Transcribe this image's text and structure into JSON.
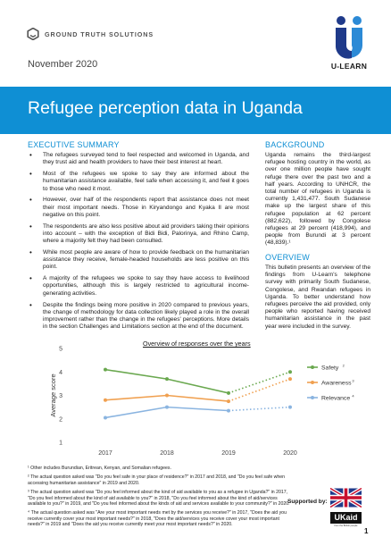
{
  "header": {
    "org_name": "GROUND TRUTH SOLUTIONS",
    "date": "November 2020",
    "partner_name": "U-LEARN",
    "title": "Refugee perception data in Uganda"
  },
  "executive_summary": {
    "heading": "EXECUTIVE SUMMARY",
    "bullets": [
      "The refugees surveyed tend to feel respected and welcomed in Uganda, and they trust aid and health providers to have their best interest at heart.",
      "Most of the refugees we spoke to say they are informed about the humanitarian assistance available, feel safe when accessing it, and feel it goes to those who need it most.",
      "However, over half of the respondents report that assistance does not meet their most important needs. Those in Kiryandongo and Kyaka II are most negative on this point.",
      "The respondents are also less positive about aid providers taking their opinions into account – with the exception of Bidi Bidi, Palorinya, and Rhino Camp, where a majority felt they had been consulted.",
      "While most people are aware of how to provide feedback on the humanitarian assistance they receive, female-headed households are less positive on this point.",
      "A majority of the refugees we spoke to say they have access to livelihood opportunities, although this is largely restricted to agricultural income-generating activities.",
      "Despite the findings being more positive in 2020 compared to previous years, the change of methodology for data collection likely played a role in the overall improvement rather than the change in the refugees' perceptions. More details in the section Challenges and Limitations section at the end of the document."
    ]
  },
  "background": {
    "heading": "BACKGROUND",
    "text": "Uganda remains the third-largest refugee hosting country in the world, as over one million people have sought refuge there over the past two and a half years. According to UNHCR, the total number of refugees in Uganda is currently 1,431,477. South Sudanese make up the largest share of this refugee population at 62 percent (882,622), followed by Congolese refugees at 29 percent (418,994), and people from Burundi at 3 percent (48,839).¹"
  },
  "overview": {
    "heading": "OVERVIEW",
    "text": "This bulletin presents an overview of the findings from U-Learn's telephone survey with primarily South Sudanese, Congolese, and Rwandan refugees in Uganda. To better understand how refugees perceive the aid provided, only people who reported having received humanitarian assistance in the past year were included in the survey."
  },
  "chart_data": {
    "type": "line",
    "title": "Overview of responses over the years",
    "xlabel": "",
    "ylabel": "Average score",
    "x": [
      "2017",
      "2018",
      "2019",
      "2020"
    ],
    "ylim": [
      1,
      5
    ],
    "yticks": [
      "1",
      "2",
      "3",
      "4",
      "5"
    ],
    "legend_position": "right",
    "series": [
      {
        "name": "Safety",
        "superscript": "2",
        "color": "#6aa84f",
        "values": [
          4.1,
          3.7,
          3.1,
          4.0
        ]
      },
      {
        "name": "Awareness",
        "superscript": "3",
        "color": "#f0a050",
        "values": [
          2.8,
          3.0,
          2.75,
          3.7
        ]
      },
      {
        "name": "Relevance",
        "superscript": "4",
        "color": "#8ab4e0",
        "values": [
          2.05,
          2.5,
          2.35,
          2.5
        ]
      }
    ]
  },
  "footnotes": [
    "¹ Other includes Burundian, Eritrean, Kenyan, and Somalian refugees.",
    "² The actual question asked was \"Do you feel safe in your place of residence?\" in 2017 and 2018, and \"Do you feel safe when accessing humanitarian assistance\" in 2019 and 2020.",
    "³ The actual question asked was \"Do you feel informed about the kind of aid available to you as a refugee in Uganda?\" in 2017, \"Do you feel informed about the kind of aid available to you?\" in 2018, \"Do you feel informed about the kind of aid/services available to you?\" in 2019, and \"Do you feel informed about the kinds of aid and services available to your community?\" in 2020.",
    "⁴ The actual question asked was \"Are your most important needs met by the services you receive?\" in 2017, \"Does the aid you receive currently cover your most important needs?\" in 2018, \"Does the aid/services you receive cover your most important needs?\" in 2019 and \"Does the aid you receive currently meet your most important needs?\" in 2020."
  ],
  "footer": {
    "supported_by": "Supported by:",
    "ukaid": "UKaid",
    "ukaid_sub": "from the British people",
    "page_number": "1"
  },
  "colors": {
    "accent": "#0f8fd4",
    "ulearn_blue": "#1f3a8a"
  }
}
